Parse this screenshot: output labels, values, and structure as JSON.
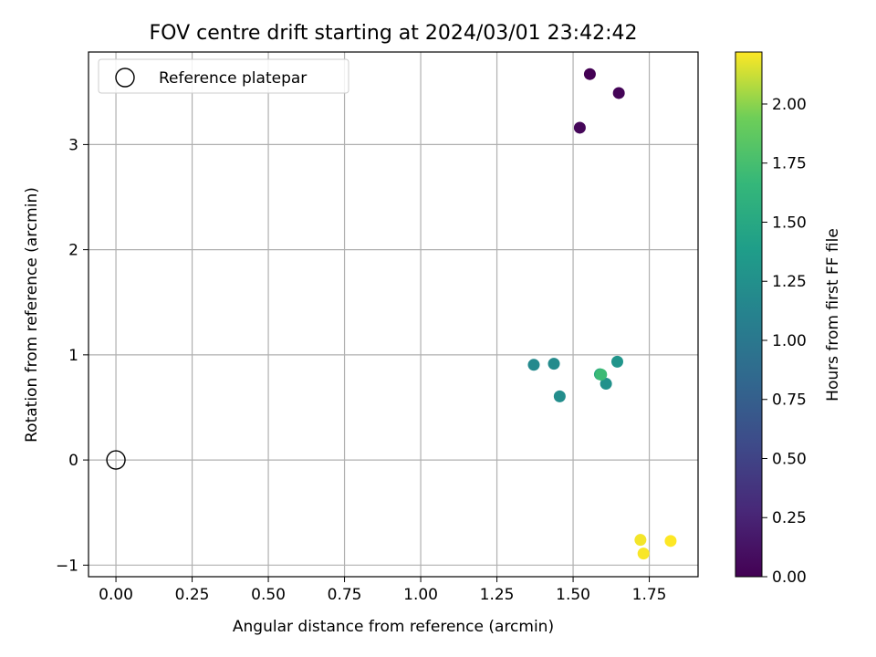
{
  "chart_data": {
    "type": "scatter",
    "title": "FOV centre drift starting at 2024/03/01 23:42:42",
    "xlabel": "Angular distance from reference (arcmin)",
    "ylabel": "Rotation from reference (arcmin)",
    "xlim": [
      -0.09,
      1.91
    ],
    "ylim": [
      -1.11,
      3.88
    ],
    "xticks": [
      0.0,
      0.25,
      0.5,
      0.75,
      1.0,
      1.25,
      1.5,
      1.75
    ],
    "xtick_labels": [
      "0.00",
      "0.25",
      "0.50",
      "0.75",
      "1.00",
      "1.25",
      "1.50",
      "1.75"
    ],
    "yticks": [
      -1,
      0,
      1,
      2,
      3
    ],
    "ytick_labels": [
      "−1",
      "0",
      "1",
      "2",
      "3"
    ],
    "grid": true,
    "legend": {
      "placement": "top-left",
      "entries": [
        {
          "label": "Reference platepar",
          "marker": "open-circle"
        }
      ]
    },
    "reference_point": {
      "x": 0.0,
      "y": 0.0,
      "label": "Reference platepar"
    },
    "colorbar": {
      "label": "Hours from first FF file",
      "colormap": "viridis",
      "range": [
        0.0,
        2.22
      ],
      "ticks": [
        0.0,
        0.25,
        0.5,
        0.75,
        1.0,
        1.25,
        1.5,
        1.75,
        2.0
      ],
      "tick_labels": [
        "0.00",
        "0.25",
        "0.50",
        "0.75",
        "1.00",
        "1.25",
        "1.50",
        "1.75",
        "2.00"
      ]
    },
    "series": [
      {
        "name": "FOV centre drift",
        "points": [
          {
            "x": 1.555,
            "y": 3.67,
            "hours": 0.0
          },
          {
            "x": 1.65,
            "y": 3.49,
            "hours": 0.02
          },
          {
            "x": 1.522,
            "y": 3.16,
            "hours": 0.04
          },
          {
            "x": 1.371,
            "y": 0.905,
            "hours": 1.18
          },
          {
            "x": 1.437,
            "y": 0.915,
            "hours": 1.2
          },
          {
            "x": 1.456,
            "y": 0.605,
            "hours": 1.22
          },
          {
            "x": 1.608,
            "y": 0.725,
            "hours": 1.26
          },
          {
            "x": 1.645,
            "y": 0.935,
            "hours": 1.3
          },
          {
            "x": 1.588,
            "y": 0.815,
            "hours": 1.52
          },
          {
            "x": 1.592,
            "y": 0.812,
            "hours": 1.7
          },
          {
            "x": 1.721,
            "y": -0.76,
            "hours": 2.2
          },
          {
            "x": 1.731,
            "y": -0.89,
            "hours": 2.21
          },
          {
            "x": 1.82,
            "y": -0.77,
            "hours": 2.22
          }
        ]
      }
    ]
  }
}
